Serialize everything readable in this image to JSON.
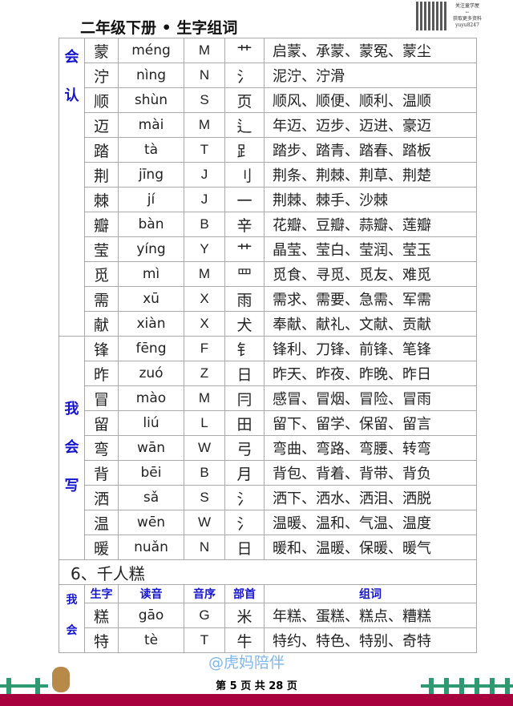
{
  "header": {
    "title": "二年级下册 • 生字组词",
    "qr_caption": [
      "关注童学屋",
      "←",
      "获取更多资料",
      "yuyu8247"
    ]
  },
  "side_labels": {
    "group1": [
      "会",
      "认"
    ],
    "group2": [
      "我",
      "会",
      "写"
    ],
    "group3": [
      "我",
      "会"
    ]
  },
  "rows": [
    {
      "char": "蒙",
      "pinyin": "méng",
      "order": "M",
      "radical": "艹",
      "words": "启蒙、承蒙、蒙冤、蒙尘"
    },
    {
      "char": "泞",
      "pinyin": "nìng",
      "order": "N",
      "radical": "氵",
      "words": "泥泞、泞滑"
    },
    {
      "char": "顺",
      "pinyin": "shùn",
      "order": "S",
      "radical": "页",
      "words": "顺风、顺便、顺利、温顺"
    },
    {
      "char": "迈",
      "pinyin": "mài",
      "order": "M",
      "radical": "⻍",
      "words": "年迈、迈步、迈进、豪迈"
    },
    {
      "char": "踏",
      "pinyin": "tà",
      "order": "T",
      "radical": "⻊",
      "words": "踏步、踏青、踏春、踏板"
    },
    {
      "char": "荆",
      "pinyin": "jīng",
      "order": "J",
      "radical": "刂",
      "words": "荆条、荆棘、荆草、荆楚"
    },
    {
      "char": "棘",
      "pinyin": "jí",
      "order": "J",
      "radical": "一",
      "words": "荆棘、棘手、沙棘"
    },
    {
      "char": "瓣",
      "pinyin": "bàn",
      "order": "B",
      "radical": "辛",
      "words": "花瓣、豆瓣、蒜瓣、莲瓣"
    },
    {
      "char": "莹",
      "pinyin": "yíng",
      "order": "Y",
      "radical": "艹",
      "words": "晶莹、莹白、莹润、莹玉"
    },
    {
      "char": "觅",
      "pinyin": "mì",
      "order": "M",
      "radical": "罒",
      "words": "觅食、寻觅、觅友、难觅"
    },
    {
      "char": "需",
      "pinyin": "xū",
      "order": "X",
      "radical": "雨",
      "words": "需求、需要、急需、军需"
    },
    {
      "char": "献",
      "pinyin": "xiàn",
      "order": "X",
      "radical": "犬",
      "words": "奉献、献礼、文献、贡献"
    },
    {
      "char": "锋",
      "pinyin": "fēng",
      "order": "F",
      "radical": "钅",
      "words": "锋利、刀锋、前锋、笔锋"
    },
    {
      "char": "昨",
      "pinyin": "zuó",
      "order": "Z",
      "radical": "日",
      "words": "昨天、昨夜、昨晚、昨日"
    },
    {
      "char": "冒",
      "pinyin": "mào",
      "order": "M",
      "radical": "冃",
      "words": "感冒、冒烟、冒险、冒雨"
    },
    {
      "char": "留",
      "pinyin": "liú",
      "order": "L",
      "radical": "田",
      "words": "留下、留学、保留、留言"
    },
    {
      "char": "弯",
      "pinyin": "wān",
      "order": "W",
      "radical": "弓",
      "words": "弯曲、弯路、弯腰、转弯"
    },
    {
      "char": "背",
      "pinyin": "bēi",
      "order": "B",
      "radical": "月",
      "words": "背包、背着、背带、背负"
    },
    {
      "char": "洒",
      "pinyin": "sǎ",
      "order": "S",
      "radical": "氵",
      "words": "洒下、洒水、洒泪、洒脱"
    },
    {
      "char": "温",
      "pinyin": "wēn",
      "order": "W",
      "radical": "氵",
      "words": "温暖、温和、气温、温度"
    },
    {
      "char": "暖",
      "pinyin": "nuǎn",
      "order": "N",
      "radical": "日",
      "words": "暖和、温暖、保暖、暖气"
    }
  ],
  "section2": {
    "title": "6、千人糕",
    "headers": [
      "生字",
      "读音",
      "音序",
      "部首",
      "组词"
    ],
    "rows": [
      {
        "char": "糕",
        "pinyin": "gāo",
        "order": "G",
        "radical": "米",
        "words": "年糕、蛋糕、糕点、糟糕"
      },
      {
        "char": "特",
        "pinyin": "tè",
        "order": "T",
        "radical": "牛",
        "words": "特约、特色、特别、奇特"
      }
    ]
  },
  "watermark": "@虎妈陪伴",
  "footer": {
    "page_text": "第 5 页 共 28 页"
  },
  "colors": {
    "label_blue": "#1515d0",
    "footer_bar": "#a8003c",
    "fence": "#2e9a72"
  }
}
